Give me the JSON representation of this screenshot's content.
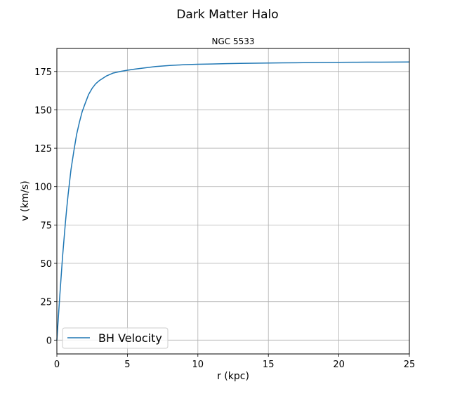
{
  "figure": {
    "title": "Dark Matter Halo"
  },
  "chart_data": {
    "type": "line",
    "title": "NGC 5533",
    "xlabel": "r (kpc)",
    "ylabel": "v (km/s)",
    "xlim": [
      0,
      25
    ],
    "ylim": [
      -9,
      190
    ],
    "xticks": [
      0,
      5,
      10,
      15,
      20,
      25
    ],
    "yticks": [
      0,
      25,
      50,
      75,
      100,
      125,
      150,
      175
    ],
    "grid": true,
    "legend_position": "lower-left",
    "series": [
      {
        "name": "BH Velocity",
        "color": "#1f77b4",
        "x": [
          0,
          0.1,
          0.2,
          0.3,
          0.4,
          0.5,
          0.6,
          0.7,
          0.8,
          0.9,
          1.0,
          1.2,
          1.4,
          1.6,
          1.8,
          2.0,
          2.25,
          2.5,
          2.75,
          3.0,
          3.5,
          4.0,
          4.5,
          5.0,
          5.5,
          6.0,
          7.0,
          8.0,
          9.0,
          10.0,
          11.0,
          12.0,
          13.0,
          14.0,
          15.0,
          16.0,
          17.0,
          18.0,
          19.0,
          20.0,
          21.0,
          22.0,
          23.0,
          24.0,
          25.0
        ],
        "y": [
          0,
          14,
          28,
          41,
          54,
          65,
          76,
          86,
          95,
          103,
          111,
          123,
          134,
          142,
          149,
          154,
          160,
          164,
          167,
          169,
          172,
          174,
          175,
          175.8,
          176.5,
          177.1,
          178.2,
          178.9,
          179.4,
          179.7,
          179.9,
          180.1,
          180.3,
          180.4,
          180.5,
          180.6,
          180.7,
          180.8,
          180.9,
          180.95,
          181.0,
          181.05,
          181.1,
          181.15,
          181.2
        ]
      }
    ]
  }
}
